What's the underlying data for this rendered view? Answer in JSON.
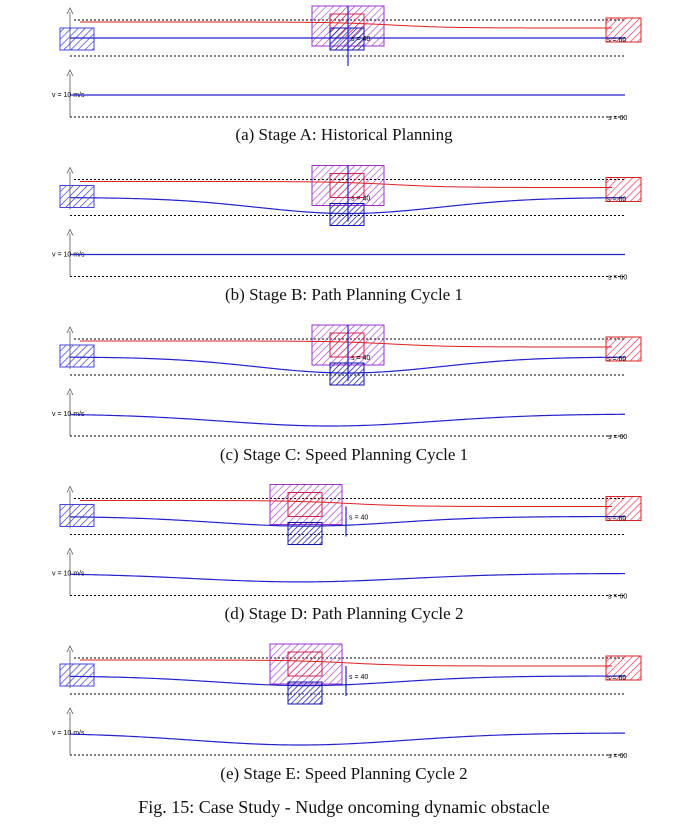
{
  "figure_caption": "Fig. 15: Case Study - Nudge oncoming dynamic obstacle",
  "colors": {
    "ego": "#2222cc",
    "reference": "#dd2222",
    "obstacle": "#9933cc",
    "dashed_boundary": "#000000"
  },
  "stages": [
    {
      "id": "a",
      "caption": "(a) Stage A: Historical Planning",
      "s_mark_label": "s = 40",
      "s_end_label": "s = 60",
      "speed_label": "v = 10 m/s",
      "speed_end_label": "s = 60",
      "path_dip": 0,
      "speed_dip": 0,
      "obstacle_shift": 0
    },
    {
      "id": "b",
      "caption": "(b) Stage B: Path Planning Cycle 1",
      "s_mark_label": "s = 40",
      "s_end_label": "s = 60",
      "speed_label": "v = 10 m/s",
      "speed_end_label": "s = 60",
      "path_dip": 1,
      "speed_dip": 0,
      "obstacle_shift": 0
    },
    {
      "id": "c",
      "caption": "(c) Stage C: Speed Planning Cycle 1",
      "s_mark_label": "s = 40",
      "s_end_label": "s = 60",
      "speed_label": "v = 10 m/s",
      "speed_end_label": "s = 60",
      "path_dip": 1,
      "speed_dip": 1,
      "obstacle_shift": 0
    },
    {
      "id": "d",
      "caption": "(d) Stage D: Path Planning Cycle 2",
      "s_mark_label": "s = 40",
      "s_end_label": "s = 60",
      "speed_label": "v = 10 m/s",
      "speed_end_label": "s = 60",
      "path_dip": 0.6,
      "speed_dip": 0.7,
      "obstacle_shift": 1
    },
    {
      "id": "e",
      "caption": "(e) Stage E: Speed Planning Cycle 2",
      "s_mark_label": "s = 40",
      "s_end_label": "s = 60",
      "speed_label": "v = 10 m/s",
      "speed_end_label": "s = 60",
      "path_dip": 0.6,
      "speed_dip": 1,
      "obstacle_shift": 1
    }
  ]
}
